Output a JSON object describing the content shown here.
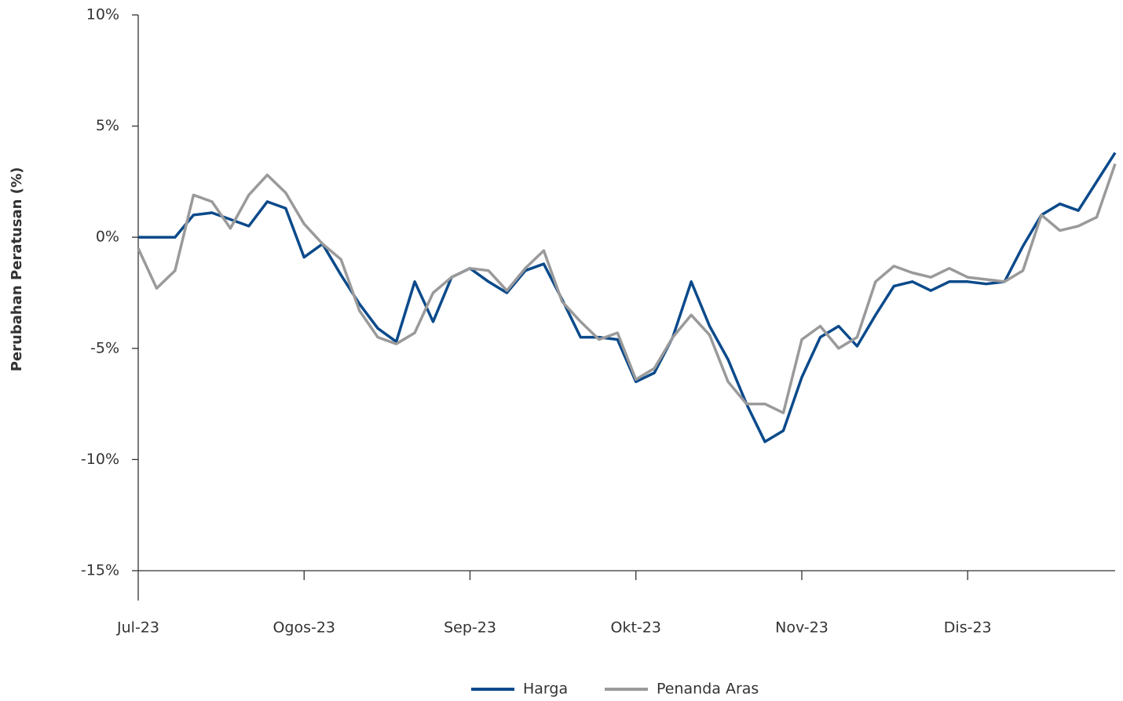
{
  "chart_data": {
    "type": "line",
    "y_axis_label": "Perubahan Peratusan (%)",
    "categories": [
      "Jul-23",
      null,
      null,
      null,
      null,
      null,
      null,
      null,
      null,
      "Ogos-23",
      null,
      null,
      null,
      null,
      null,
      null,
      null,
      null,
      "Sep-23",
      null,
      null,
      null,
      null,
      null,
      null,
      null,
      null,
      "Okt-23",
      null,
      null,
      null,
      null,
      null,
      null,
      null,
      null,
      "Nov-23",
      null,
      null,
      null,
      null,
      null,
      null,
      null,
      null,
      "Dis-23",
      null,
      null,
      null,
      null,
      null,
      null,
      null,
      null
    ],
    "series": [
      {
        "name": "Harga",
        "color": "#0b4a8b",
        "values": [
          0,
          0,
          0,
          1.0,
          1.1,
          0.8,
          0.5,
          1.6,
          1.3,
          -0.9,
          -0.3,
          -1.7,
          -3.0,
          -4.1,
          -4.7,
          -2.0,
          -3.8,
          -1.8,
          -1.4,
          -2.0,
          -2.5,
          -1.5,
          -1.2,
          -2.8,
          -4.5,
          -4.5,
          -4.6,
          -6.5,
          -6.1,
          -4.5,
          -2.0,
          -4.0,
          -5.5,
          -7.5,
          -9.2,
          -8.7,
          -6.3,
          -4.5,
          -4.0,
          -4.9,
          -3.5,
          -2.2,
          -2.0,
          -2.4,
          -2.0,
          -2.0,
          -2.1,
          -2.0,
          -0.4,
          1.0,
          1.5,
          1.2,
          2.5,
          3.8
        ]
      },
      {
        "name": "Penanda Aras",
        "color": "#9a9a9a",
        "values": [
          -0.5,
          -2.3,
          -1.5,
          1.9,
          1.6,
          0.4,
          1.9,
          2.8,
          2.0,
          0.6,
          -0.3,
          -1.0,
          -3.3,
          -4.5,
          -4.8,
          -4.3,
          -2.5,
          -1.8,
          -1.4,
          -1.5,
          -2.4,
          -1.4,
          -0.6,
          -2.9,
          -3.8,
          -4.6,
          -4.3,
          -6.4,
          -5.9,
          -4.5,
          -3.5,
          -4.4,
          -6.5,
          -7.5,
          -7.5,
          -7.9,
          -4.6,
          -4.0,
          -5.0,
          -4.5,
          -2.0,
          -1.3,
          -1.6,
          -1.8,
          -1.4,
          -1.8,
          -1.9,
          -2.0,
          -1.5,
          1.0,
          0.3,
          0.5,
          0.9,
          3.3
        ]
      }
    ],
    "ylim": [
      -15,
      10
    ],
    "yticks": [
      {
        "value": -15,
        "label": "-15%"
      },
      {
        "value": -10,
        "label": "-10%"
      },
      {
        "value": -5,
        "label": "-5%"
      },
      {
        "value": 0,
        "label": "0%"
      },
      {
        "value": 5,
        "label": "5%"
      },
      {
        "value": 10,
        "label": "10%"
      }
    ],
    "grid": false,
    "legend": "bottom"
  }
}
